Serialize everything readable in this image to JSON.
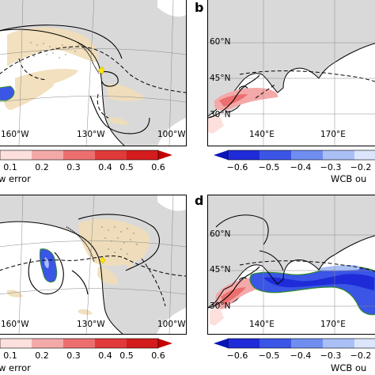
{
  "panels": {
    "a": {
      "lon_labels": [
        "160°W",
        "130°W",
        "100°W"
      ]
    },
    "b": {
      "label": "b",
      "lat_labels": [
        "60°N",
        "45°N",
        "30°N"
      ],
      "lon_labels": [
        "140°E",
        "170°E"
      ]
    },
    "c": {
      "lon_labels": [
        "160°W",
        "130°W",
        "100°W"
      ]
    },
    "d": {
      "label": "d",
      "lat_labels": [
        "60°N",
        "45°N",
        "30°N"
      ],
      "lon_labels": [
        "140°E",
        "170°E"
      ]
    }
  },
  "colorbars": {
    "top_left": {
      "ticks": [
        "0.1",
        "0.2",
        "0.3",
        "0.4",
        "0.5",
        "0.6"
      ],
      "title": "w error",
      "colors": [
        "#fde0dd",
        "#f4a9a9",
        "#ec6f6f",
        "#e03a3a",
        "#d41c1c"
      ]
    },
    "top_right": {
      "ticks": [
        "−0.6",
        "−0.5",
        "−0.4",
        "−0.3",
        "−0.2"
      ],
      "title": "WCB ou",
      "colors": [
        "#1f2bd8",
        "#3b55e6",
        "#6f8ef0",
        "#a9bff6",
        "#dbe5fb"
      ]
    },
    "bottom_left": {
      "ticks": [
        "0.1",
        "0.2",
        "0.3",
        "0.4",
        "0.5",
        "0.6"
      ],
      "title": "w error",
      "colors": [
        "#fde0dd",
        "#f4a9a9",
        "#ec6f6f",
        "#e03a3a",
        "#d41c1c"
      ]
    },
    "bottom_right": {
      "ticks": [
        "−0.6",
        "−0.5",
        "−0.4",
        "−0.3",
        "−0.2"
      ],
      "title": "WCB ou",
      "colors": [
        "#1f2bd8",
        "#3b55e6",
        "#6f8ef0",
        "#a9bff6",
        "#dbe5fb"
      ]
    }
  },
  "colors": {
    "land": "#d9d9d9",
    "ocean": "#ffffff",
    "tan_shading": "#f1ddb8",
    "marker": "#ffe600",
    "wcb_outline": "#2e8b2e"
  }
}
